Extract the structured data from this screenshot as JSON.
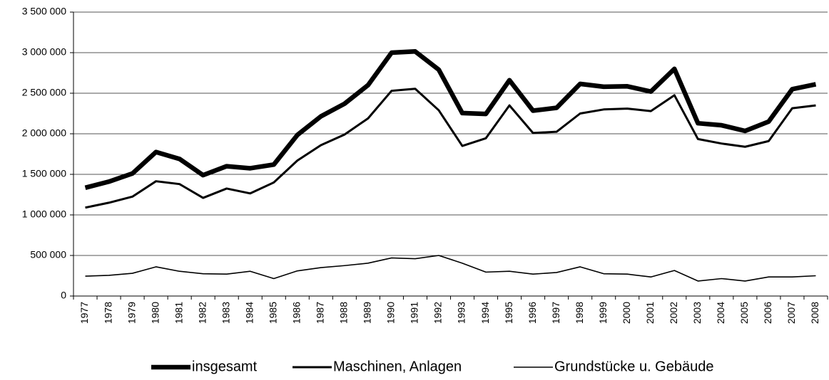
{
  "chart_data": {
    "type": "line",
    "categories": [
      "1977",
      "1978",
      "1979",
      "1980",
      "1981",
      "1982",
      "1983",
      "1984",
      "1985",
      "1986",
      "1987",
      "1988",
      "1989",
      "1990",
      "1991",
      "1992",
      "1993",
      "1994",
      "1995",
      "1996",
      "1997",
      "1998",
      "1999",
      "2000",
      "2001",
      "2002",
      "2003",
      "2004",
      "2005",
      "2006",
      "2007",
      "2008"
    ],
    "series": [
      {
        "name": "insgesamt",
        "color": "#000000",
        "values": [
          1335000,
          1410000,
          1510000,
          1775000,
          1690000,
          1490000,
          1600000,
          1575000,
          1620000,
          1985000,
          2215000,
          2370000,
          2600000,
          3000000,
          3015000,
          2790000,
          2255000,
          2245000,
          2660000,
          2285000,
          2320000,
          2615000,
          2580000,
          2585000,
          2520000,
          2800000,
          2130000,
          2105000,
          2035000,
          2150000,
          2550000,
          2610000
        ]
      },
      {
        "name": "Maschinen, Anlagen",
        "color": "#000000",
        "values": [
          1090000,
          1150000,
          1225000,
          1415000,
          1380000,
          1210000,
          1325000,
          1265000,
          1400000,
          1670000,
          1860000,
          1990000,
          2190000,
          2530000,
          2555000,
          2290000,
          1850000,
          1945000,
          2350000,
          2010000,
          2025000,
          2250000,
          2300000,
          2310000,
          2280000,
          2475000,
          1935000,
          1880000,
          1840000,
          1910000,
          2315000,
          2350000
        ]
      },
      {
        "name": "Grundstücke u. Gebäude",
        "color": "#000000",
        "values": [
          245000,
          255000,
          280000,
          360000,
          305000,
          275000,
          270000,
          305000,
          215000,
          310000,
          350000,
          375000,
          405000,
          470000,
          460000,
          500000,
          405000,
          295000,
          305000,
          270000,
          290000,
          360000,
          275000,
          270000,
          235000,
          315000,
          185000,
          215000,
          185000,
          235000,
          235000,
          250000
        ]
      }
    ],
    "ylim": [
      0,
      3500000
    ],
    "yticks": [
      0,
      {
        "value": 500000,
        "label": "500 000"
      },
      {
        "value": 1000000,
        "label": "1 000 000"
      },
      {
        "value": 1500000,
        "label": "1 500 000"
      },
      {
        "value": 2000000,
        "label": "2 000 000"
      },
      {
        "value": 2500000,
        "label": "2 500 000"
      },
      {
        "value": 3000000,
        "label": "3 000 000"
      },
      {
        "value": 3500000,
        "label": "3 500 000"
      }
    ],
    "grid": true,
    "legend": "bottom"
  }
}
